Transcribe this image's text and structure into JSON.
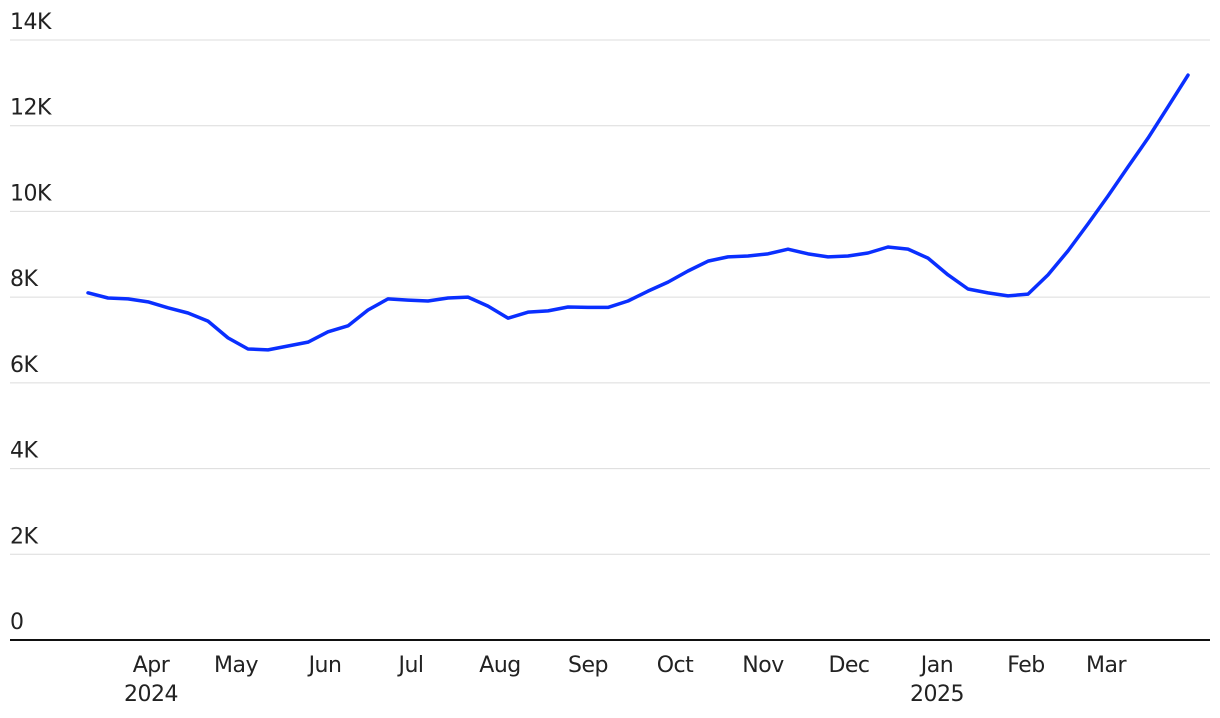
{
  "chart_data": {
    "type": "line",
    "x": [
      0,
      1,
      2,
      3,
      4,
      5,
      6,
      7,
      8,
      9,
      10,
      11,
      12,
      13,
      14,
      15,
      16,
      17,
      18,
      19,
      20,
      21,
      22,
      23,
      24,
      25,
      26,
      27,
      28,
      29,
      30,
      31,
      32,
      33,
      34,
      35,
      36,
      37,
      38,
      39,
      40,
      41,
      42,
      43,
      44,
      45,
      46,
      47,
      48,
      49,
      50,
      51,
      52,
      53,
      54,
      55
    ],
    "series": [
      {
        "color": "#0a2fff",
        "values": [
          8100,
          7980,
          7960,
          7890,
          7750,
          7630,
          7440,
          7050,
          6790,
          6770,
          6860,
          6950,
          7190,
          7330,
          7700,
          7960,
          7930,
          7910,
          7980,
          8000,
          7790,
          7510,
          7650,
          7680,
          7770,
          7760,
          7760,
          7910,
          8140,
          8350,
          8610,
          8840,
          8940,
          8960,
          9010,
          9120,
          9010,
          8940,
          8960,
          9030,
          9170,
          9120,
          8910,
          8520,
          8190,
          8100,
          8030,
          8070,
          8520,
          9080,
          9710,
          10360,
          11040,
          11710,
          12440,
          13180
        ]
      }
    ],
    "xlim": [
      -3.9,
      56.1
    ],
    "xticks": [
      {
        "value": 3.15,
        "label": "Apr\n2024"
      },
      {
        "value": 7.4,
        "label": "May"
      },
      {
        "value": 11.85,
        "label": "Jun"
      },
      {
        "value": 16.15,
        "label": "Jul"
      },
      {
        "value": 20.6,
        "label": "Aug"
      },
      {
        "value": 25,
        "label": "Sep"
      },
      {
        "value": 29.35,
        "label": "Oct"
      },
      {
        "value": 33.75,
        "label": "Nov"
      },
      {
        "value": 38.05,
        "label": "Dec"
      },
      {
        "value": 42.45,
        "label": "Jan\n2025"
      },
      {
        "value": 46.9,
        "label": "Feb"
      },
      {
        "value": 50.9,
        "label": "Mar"
      }
    ],
    "ylim": [
      0,
      14000
    ],
    "yticks": [
      0,
      {
        "value": 2000,
        "label": "2K"
      },
      {
        "value": 4000,
        "label": "4K"
      },
      {
        "value": 6000,
        "label": "6K"
      },
      {
        "value": 8000,
        "label": "8K"
      },
      {
        "value": 10000,
        "label": "10K"
      },
      {
        "value": 12000,
        "label": "12K"
      },
      {
        "value": 14000,
        "label": "14K"
      }
    ],
    "grid": true
  }
}
